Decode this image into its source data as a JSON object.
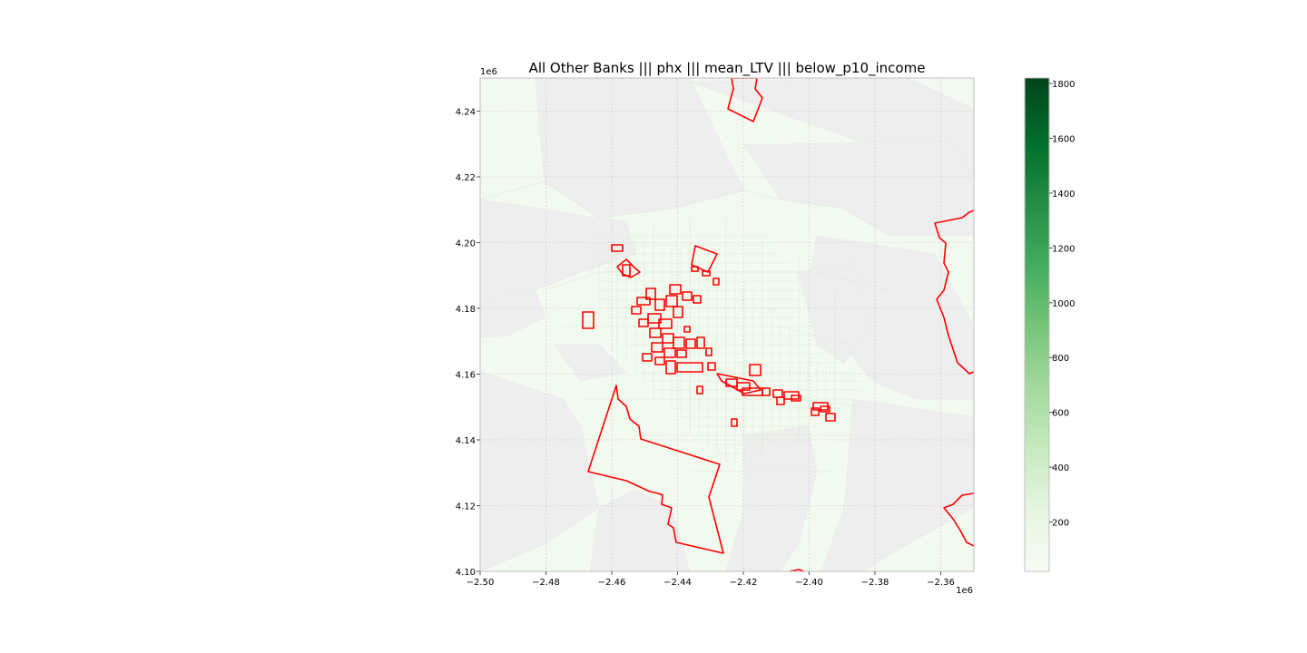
{
  "title": "All Other Banks ||| phx ||| mean_LTV ||| below_p10_income",
  "axes": {
    "x_ticks": [
      "−2.50",
      "−2.48",
      "−2.46",
      "−2.44",
      "−2.42",
      "−2.40",
      "−2.38",
      "−2.36"
    ],
    "y_ticks": [
      "4.10",
      "4.12",
      "4.14",
      "4.16",
      "4.18",
      "4.20",
      "4.22",
      "4.24"
    ],
    "x_offset_label": "1e6",
    "y_offset_label": "1e6",
    "x_range": [
      -2.5,
      -2.35
    ],
    "y_range": [
      4.1,
      4.25
    ],
    "grid": true
  },
  "colorbar": {
    "ticks": [
      "200",
      "400",
      "600",
      "800",
      "1000",
      "1200",
      "1400",
      "1600",
      "1800"
    ],
    "range": [
      20,
      1820
    ],
    "colormap": "Greens",
    "color_low": "#f7fcf5",
    "color_high": "#00441b"
  },
  "colors": {
    "tract_fill": "#f2f9ef",
    "tract_line": "#d9ead3",
    "no_data": "#eeeeee",
    "highlight_outline": "#ff0000",
    "grid": "#c8c8c8"
  }
}
